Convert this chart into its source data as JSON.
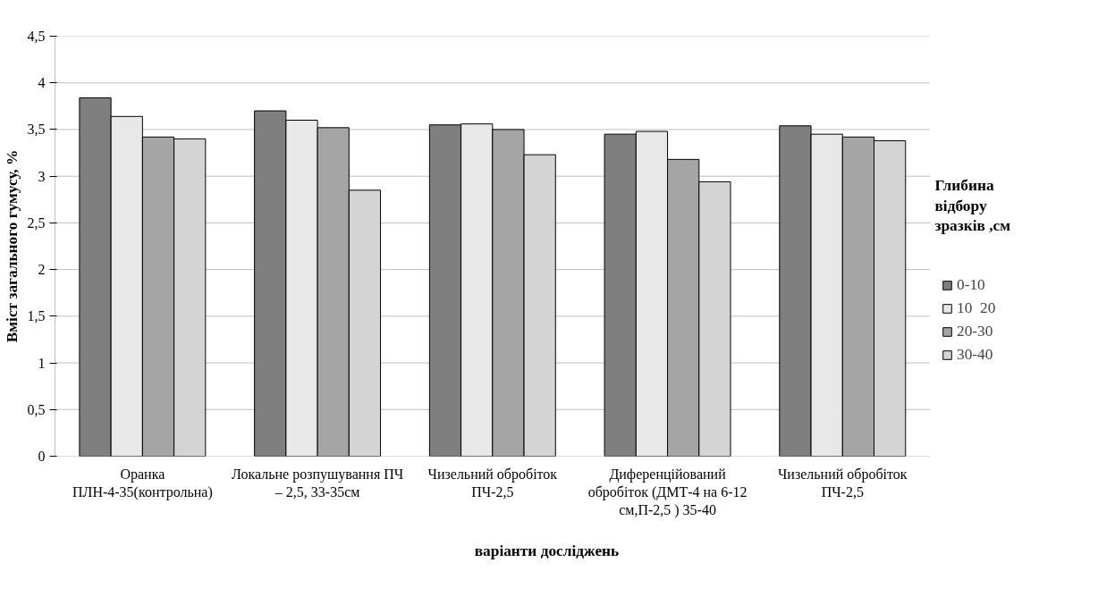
{
  "chart_data": {
    "type": "bar",
    "xlabel": "варіанти досліджень",
    "ylabel": "Вміст загального гумусу, %",
    "legend_title": "Глибина відбору зразків ,см",
    "categories": [
      "Оранка ПЛН-4-35(контрольна)",
      "Локальне розпушування ПЧ – 2,5, 33-35см",
      "Чизельний обробіток ПЧ-2,5",
      "Диференційований обробіток (ДМТ-4 на 6-12 см,П-2,5 ) 35-40",
      "Чизельний обробіток ПЧ-2,5"
    ],
    "series": [
      {
        "name": "0-10",
        "color": "#7f7f7f",
        "values": [
          3.84,
          3.7,
          3.55,
          3.45,
          3.54
        ]
      },
      {
        "name": "10  20",
        "color": "#e8e8e8",
        "values": [
          3.64,
          3.6,
          3.56,
          3.48,
          3.45
        ]
      },
      {
        "name": "20-30",
        "color": "#a5a5a5",
        "values": [
          3.42,
          3.52,
          3.5,
          3.18,
          3.42
        ]
      },
      {
        "name": "30-40",
        "color": "#d4d4d4",
        "values": [
          3.4,
          2.85,
          3.23,
          2.94,
          3.38
        ]
      }
    ],
    "ylim": [
      0,
      4.5
    ],
    "yticks": [
      0,
      {
        "value": 0.5,
        "label": "0,5"
      },
      1,
      {
        "value": 1.5,
        "label": "1,5"
      },
      2,
      {
        "value": 2.5,
        "label": "2,5"
      },
      3,
      {
        "value": 3.5,
        "label": "3,5"
      },
      4,
      {
        "value": 4.5,
        "label": "4,5"
      }
    ],
    "grid": "y",
    "legend": "right"
  }
}
